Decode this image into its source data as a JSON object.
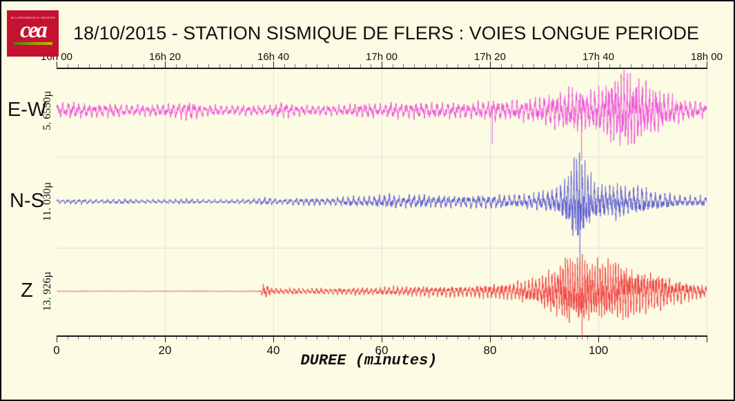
{
  "logo": {
    "tagline": "DE LA RECHERCHE À L'INDUSTRIE",
    "wordmark": "cea",
    "bg_color": "#c41230",
    "underline_colors": [
      "#4a7a1e",
      "#c8b400"
    ]
  },
  "title": "18/10/2015  -  STATION SISMIQUE DE FLERS : VOIES LONGUE PERIODE",
  "chart_data": {
    "type": "line",
    "subtype": "seismogram",
    "title": "18/10/2015 - STATION SISMIQUE DE FLERS : VOIES LONGUE PERIODE",
    "background_color": "#fcfbe3",
    "grid": {
      "vertical_every_minutes": 20,
      "horizontal_band_separators": true
    },
    "top_axis": {
      "tick_labels": [
        "16h 00",
        "16h 20",
        "16h 40",
        "17h 00",
        "17h 20",
        "17h 40",
        "18h 00"
      ],
      "major_tick_minutes": 20,
      "minor_tick_minutes": 2
    },
    "bottom_axis": {
      "label": "DUREE (minutes)",
      "tick_labels": [
        "0",
        "20",
        "40",
        "60",
        "80",
        "100"
      ],
      "range_minutes": [
        0,
        120
      ],
      "major_tick_minutes": 20,
      "minor_tick_minutes": 2
    },
    "event_note": "large seismic arrival around 93-110 minutes (~17h33-17h50)",
    "series": [
      {
        "name": "E-W",
        "amplitude_label": "5. 6550µ",
        "color": "#ee53dc",
        "seed": 11,
        "freqs": [
          0.85,
          1.6,
          2.8
        ],
        "envelope": [
          [
            0,
            10
          ],
          [
            3,
            12
          ],
          [
            6,
            9
          ],
          [
            10,
            10
          ],
          [
            14,
            8
          ],
          [
            18,
            9
          ],
          [
            22,
            11
          ],
          [
            24,
            14
          ],
          [
            27,
            9
          ],
          [
            31,
            7
          ],
          [
            35,
            8
          ],
          [
            39,
            7
          ],
          [
            42,
            12
          ],
          [
            44,
            8
          ],
          [
            48,
            7
          ],
          [
            52,
            8
          ],
          [
            55,
            9
          ],
          [
            58,
            11
          ],
          [
            60,
            9
          ],
          [
            62,
            13
          ],
          [
            64,
            10
          ],
          [
            67,
            12
          ],
          [
            70,
            11
          ],
          [
            73,
            12
          ],
          [
            76,
            11
          ],
          [
            79,
            13
          ],
          [
            81,
            15
          ],
          [
            83,
            13
          ],
          [
            86,
            15
          ],
          [
            89,
            18
          ],
          [
            92,
            24
          ],
          [
            94,
            28
          ],
          [
            96,
            33
          ],
          [
            98,
            28
          ],
          [
            100,
            31
          ],
          [
            102,
            42
          ],
          [
            104,
            56
          ],
          [
            106,
            50
          ],
          [
            108,
            42
          ],
          [
            110,
            34
          ],
          [
            112,
            27
          ],
          [
            114,
            20
          ],
          [
            116,
            15
          ],
          [
            118,
            13
          ],
          [
            120,
            11
          ]
        ],
        "spikes": [
          [
            80.4,
            49
          ],
          [
            96.9,
            73
          ]
        ]
      },
      {
        "name": "N-S",
        "amplitude_label": "11. 030µ",
        "color": "#5a5ad2",
        "seed": 22,
        "freqs": [
          0.9,
          1.8,
          3.2
        ],
        "envelope": [
          [
            0,
            3
          ],
          [
            4,
            4
          ],
          [
            8,
            3
          ],
          [
            12,
            4
          ],
          [
            16,
            3
          ],
          [
            20,
            3
          ],
          [
            24,
            4
          ],
          [
            28,
            3
          ],
          [
            32,
            3
          ],
          [
            36,
            4
          ],
          [
            39,
            6
          ],
          [
            41,
            4
          ],
          [
            44,
            5
          ],
          [
            47,
            6
          ],
          [
            50,
            5
          ],
          [
            53,
            7
          ],
          [
            56,
            8
          ],
          [
            58,
            7
          ],
          [
            60,
            9
          ],
          [
            62,
            11
          ],
          [
            64,
            8
          ],
          [
            66,
            10
          ],
          [
            68,
            9
          ],
          [
            70,
            8
          ],
          [
            72,
            9
          ],
          [
            74,
            8
          ],
          [
            76,
            9
          ],
          [
            78,
            10
          ],
          [
            80,
            9
          ],
          [
            82,
            10
          ],
          [
            84,
            9
          ],
          [
            86,
            11
          ],
          [
            88,
            12
          ],
          [
            90,
            14
          ],
          [
            92,
            17
          ],
          [
            93,
            22
          ],
          [
            94,
            32
          ],
          [
            95,
            48
          ],
          [
            96,
            62
          ],
          [
            97,
            58
          ],
          [
            98,
            44
          ],
          [
            99,
            34
          ],
          [
            100,
            27
          ],
          [
            101,
            24
          ],
          [
            102,
            22
          ],
          [
            103,
            26
          ],
          [
            104,
            24
          ],
          [
            105,
            20
          ],
          [
            106,
            18
          ],
          [
            107,
            22
          ],
          [
            108,
            20
          ],
          [
            109,
            16
          ],
          [
            110,
            14
          ],
          [
            111,
            12
          ],
          [
            112,
            10
          ],
          [
            113,
            12
          ],
          [
            114,
            9
          ],
          [
            115,
            8
          ],
          [
            116,
            7
          ],
          [
            117,
            8
          ],
          [
            118,
            7
          ],
          [
            119,
            8
          ],
          [
            120,
            6
          ]
        ],
        "spikes": [
          [
            96.6,
            107
          ]
        ]
      },
      {
        "name": "Z",
        "amplitude_label": "13. 926µ",
        "color": "#ee4141",
        "seed": 33,
        "freqs": [
          1.1,
          2.2,
          3.8
        ],
        "envelope": [
          [
            0,
            0.8
          ],
          [
            36,
            0.9
          ],
          [
            37.5,
            1.5
          ],
          [
            38.3,
            11
          ],
          [
            39,
            9
          ],
          [
            40,
            5
          ],
          [
            42,
            4
          ],
          [
            44,
            5
          ],
          [
            46,
            4
          ],
          [
            48,
            5
          ],
          [
            50,
            4
          ],
          [
            52,
            5
          ],
          [
            54,
            5
          ],
          [
            56,
            6
          ],
          [
            58,
            5
          ],
          [
            60,
            6
          ],
          [
            62,
            7
          ],
          [
            64,
            6
          ],
          [
            66,
            7
          ],
          [
            68,
            8
          ],
          [
            70,
            7
          ],
          [
            72,
            8
          ],
          [
            74,
            9
          ],
          [
            76,
            8
          ],
          [
            78,
            9
          ],
          [
            80,
            10
          ],
          [
            82,
            11
          ],
          [
            84,
            13
          ],
          [
            86,
            15
          ],
          [
            88,
            18
          ],
          [
            90,
            24
          ],
          [
            92,
            32
          ],
          [
            93,
            40
          ],
          [
            94,
            46
          ],
          [
            95,
            48
          ],
          [
            96,
            46
          ],
          [
            97,
            48
          ],
          [
            98,
            44
          ],
          [
            99,
            40
          ],
          [
            100,
            42
          ],
          [
            101,
            38
          ],
          [
            102,
            40
          ],
          [
            103,
            42
          ],
          [
            104,
            36
          ],
          [
            105,
            40
          ],
          [
            106,
            34
          ],
          [
            107,
            30
          ],
          [
            108,
            28
          ],
          [
            109,
            32
          ],
          [
            110,
            26
          ],
          [
            111,
            30
          ],
          [
            112,
            24
          ],
          [
            113,
            20
          ],
          [
            114,
            16
          ],
          [
            115,
            18
          ],
          [
            116,
            14
          ],
          [
            117,
            13
          ],
          [
            118,
            11
          ],
          [
            119,
            10
          ],
          [
            120,
            9
          ]
        ],
        "spikes": [
          [
            97.0,
            70
          ]
        ]
      }
    ]
  }
}
